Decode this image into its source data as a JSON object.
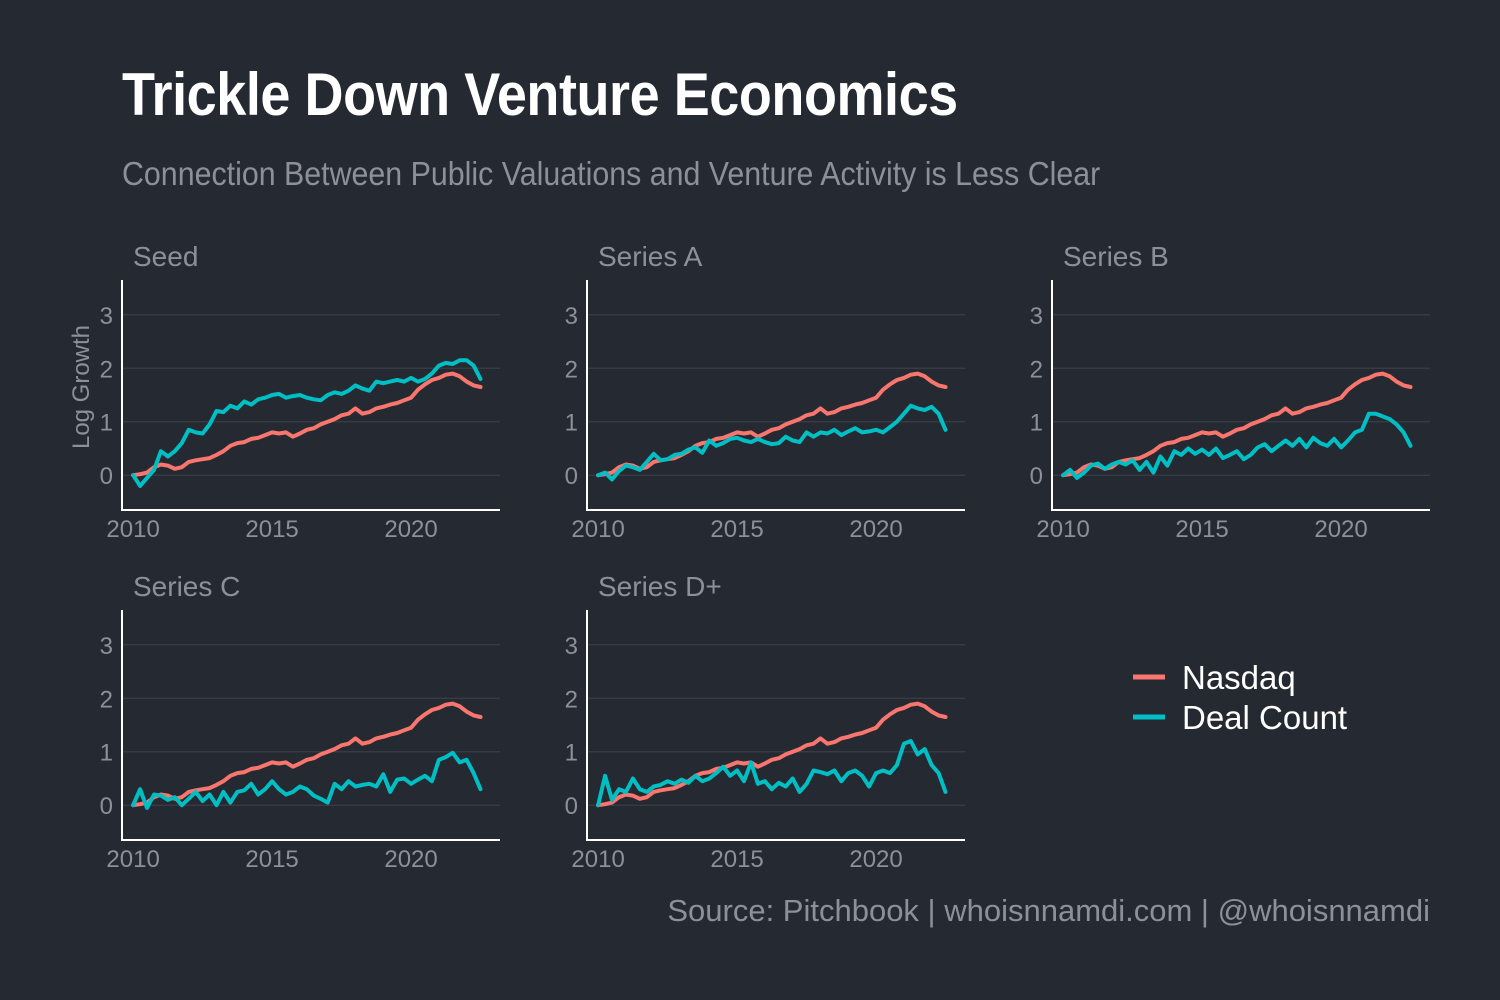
{
  "title": "Trickle Down Venture Economics",
  "subtitle": "Connection Between Public Valuations and Venture Activity is Less Clear",
  "source": "Source: Pitchbook | whoisnnamdi.com | @whoisnnamdi",
  "colors": {
    "nasdaq": "#f8766d",
    "deal": "#00bfc4",
    "background": "#252931",
    "text": "#8d9097",
    "grid": "#3a3e46",
    "axis": "#ffffff"
  },
  "chart_data": {
    "type": "line",
    "ylabel": "Log Growth",
    "xlabel": "",
    "xlim": [
      2009.6,
      2023.2
    ],
    "ylim": [
      -0.65,
      3.65
    ],
    "xticks": [
      2010,
      2015,
      2020
    ],
    "yticks": [
      0,
      1,
      2,
      3
    ],
    "legend": {
      "position": "right",
      "entries": [
        "Nasdaq",
        "Deal Count"
      ]
    },
    "x": [
      2010.0,
      2010.25,
      2010.5,
      2010.75,
      2011.0,
      2011.25,
      2011.5,
      2011.75,
      2012.0,
      2012.25,
      2012.5,
      2012.75,
      2013.0,
      2013.25,
      2013.5,
      2013.75,
      2014.0,
      2014.25,
      2014.5,
      2014.75,
      2015.0,
      2015.25,
      2015.5,
      2015.75,
      2016.0,
      2016.25,
      2016.5,
      2016.75,
      2017.0,
      2017.25,
      2017.5,
      2017.75,
      2018.0,
      2018.25,
      2018.5,
      2018.75,
      2019.0,
      2019.25,
      2019.5,
      2019.75,
      2020.0,
      2020.25,
      2020.5,
      2020.75,
      2021.0,
      2021.25,
      2021.5,
      2021.75,
      2022.0,
      2022.25,
      2022.5
    ],
    "nasdaq": [
      0.0,
      0.02,
      0.05,
      0.15,
      0.2,
      0.18,
      0.12,
      0.15,
      0.25,
      0.28,
      0.3,
      0.32,
      0.38,
      0.45,
      0.55,
      0.6,
      0.62,
      0.68,
      0.7,
      0.75,
      0.8,
      0.78,
      0.8,
      0.72,
      0.78,
      0.85,
      0.88,
      0.95,
      1.0,
      1.05,
      1.12,
      1.15,
      1.25,
      1.15,
      1.18,
      1.25,
      1.28,
      1.32,
      1.35,
      1.4,
      1.45,
      1.6,
      1.7,
      1.78,
      1.82,
      1.88,
      1.9,
      1.85,
      1.75,
      1.68,
      1.65
    ],
    "panels": [
      {
        "name": "Seed",
        "deal": [
          0.0,
          -0.2,
          -0.05,
          0.1,
          0.45,
          0.35,
          0.45,
          0.6,
          0.85,
          0.8,
          0.78,
          0.95,
          1.2,
          1.18,
          1.3,
          1.25,
          1.38,
          1.32,
          1.42,
          1.45,
          1.5,
          1.52,
          1.45,
          1.48,
          1.5,
          1.45,
          1.42,
          1.4,
          1.5,
          1.55,
          1.52,
          1.58,
          1.68,
          1.62,
          1.58,
          1.75,
          1.72,
          1.75,
          1.78,
          1.75,
          1.82,
          1.75,
          1.8,
          1.9,
          2.05,
          2.1,
          2.08,
          2.15,
          2.15,
          2.05,
          1.8
        ]
      },
      {
        "name": "Series A",
        "deal": [
          0.0,
          0.05,
          -0.08,
          0.08,
          0.18,
          0.15,
          0.1,
          0.25,
          0.4,
          0.28,
          0.3,
          0.38,
          0.4,
          0.48,
          0.52,
          0.42,
          0.65,
          0.55,
          0.6,
          0.68,
          0.7,
          0.65,
          0.62,
          0.68,
          0.62,
          0.58,
          0.6,
          0.72,
          0.65,
          0.62,
          0.8,
          0.72,
          0.8,
          0.78,
          0.85,
          0.75,
          0.82,
          0.88,
          0.8,
          0.82,
          0.85,
          0.8,
          0.9,
          1.0,
          1.15,
          1.3,
          1.25,
          1.22,
          1.28,
          1.15,
          0.85
        ]
      },
      {
        "name": "Series B",
        "deal": [
          0.0,
          0.1,
          -0.05,
          0.05,
          0.18,
          0.22,
          0.12,
          0.2,
          0.25,
          0.2,
          0.28,
          0.1,
          0.25,
          0.05,
          0.35,
          0.18,
          0.45,
          0.38,
          0.5,
          0.4,
          0.48,
          0.38,
          0.5,
          0.32,
          0.38,
          0.45,
          0.3,
          0.38,
          0.52,
          0.58,
          0.45,
          0.55,
          0.65,
          0.55,
          0.68,
          0.52,
          0.7,
          0.6,
          0.55,
          0.68,
          0.52,
          0.65,
          0.8,
          0.85,
          1.15,
          1.15,
          1.1,
          1.05,
          0.95,
          0.8,
          0.55
        ]
      },
      {
        "name": "Series C",
        "deal": [
          0.0,
          0.3,
          -0.05,
          0.2,
          0.18,
          0.1,
          0.15,
          0.0,
          0.12,
          0.25,
          0.08,
          0.2,
          0.0,
          0.25,
          0.05,
          0.25,
          0.28,
          0.4,
          0.2,
          0.3,
          0.45,
          0.3,
          0.2,
          0.25,
          0.35,
          0.3,
          0.18,
          0.12,
          0.05,
          0.4,
          0.3,
          0.45,
          0.35,
          0.38,
          0.4,
          0.35,
          0.58,
          0.25,
          0.48,
          0.5,
          0.4,
          0.48,
          0.55,
          0.45,
          0.85,
          0.9,
          0.98,
          0.8,
          0.85,
          0.6,
          0.3
        ]
      },
      {
        "name": "Series D+",
        "deal": [
          0.0,
          0.55,
          0.1,
          0.3,
          0.25,
          0.5,
          0.3,
          0.25,
          0.35,
          0.38,
          0.45,
          0.4,
          0.48,
          0.42,
          0.55,
          0.45,
          0.5,
          0.6,
          0.72,
          0.55,
          0.65,
          0.45,
          0.8,
          0.4,
          0.45,
          0.3,
          0.42,
          0.35,
          0.5,
          0.25,
          0.4,
          0.65,
          0.62,
          0.58,
          0.65,
          0.45,
          0.6,
          0.65,
          0.55,
          0.35,
          0.6,
          0.65,
          0.6,
          0.75,
          1.15,
          1.2,
          0.95,
          1.05,
          0.75,
          0.6,
          0.25
        ]
      }
    ]
  }
}
